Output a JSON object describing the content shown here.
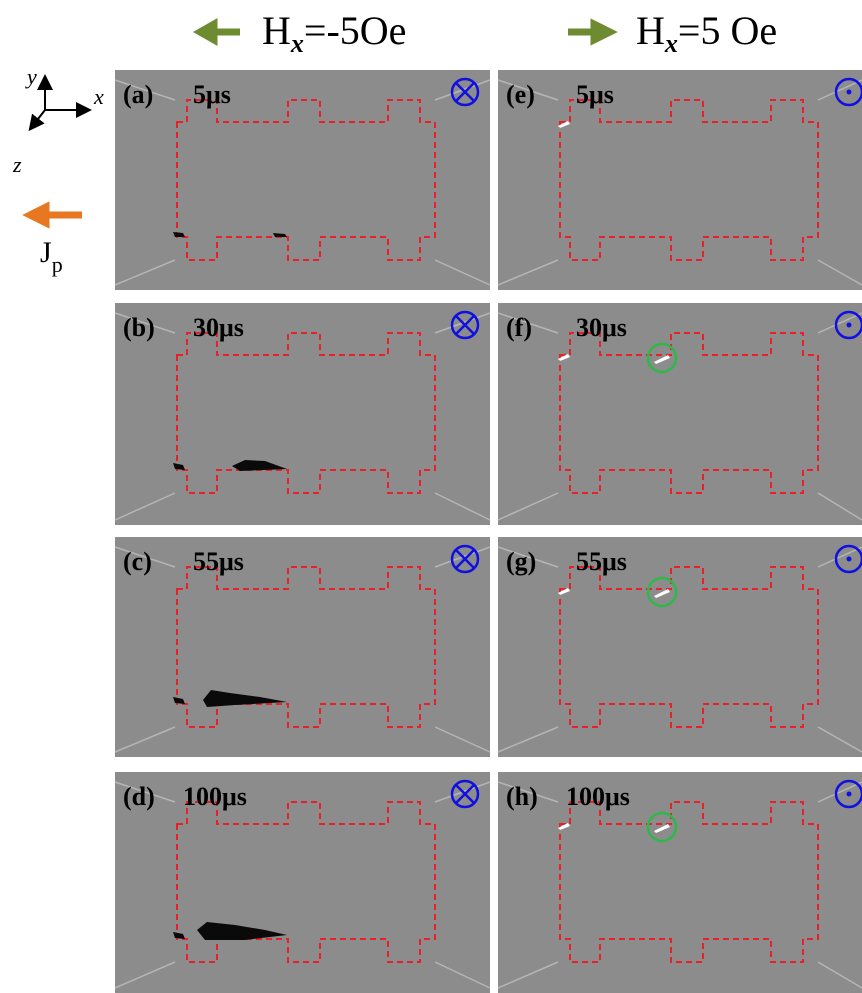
{
  "headers": [
    {
      "prefix": "H",
      "sub": "x",
      "suffix": "=-5Oe"
    },
    {
      "prefix": "H",
      "sub": "x",
      "suffix": "=5 Oe"
    }
  ],
  "axes": {
    "y": "y",
    "x": "x",
    "z": "z",
    "current": "J",
    "current_sub": "p"
  },
  "panels": [
    {
      "label": "(a)",
      "time": "5μs"
    },
    {
      "label": "(b)",
      "time": "30μs"
    },
    {
      "label": "(c)",
      "time": "55μs"
    },
    {
      "label": "(d)",
      "time": "100μs"
    },
    {
      "label": "(e)",
      "time": "5μs"
    },
    {
      "label": "(f)",
      "time": "30μs"
    },
    {
      "label": "(g)",
      "time": "55μs"
    },
    {
      "label": "(h)",
      "time": "100μs"
    }
  ]
}
